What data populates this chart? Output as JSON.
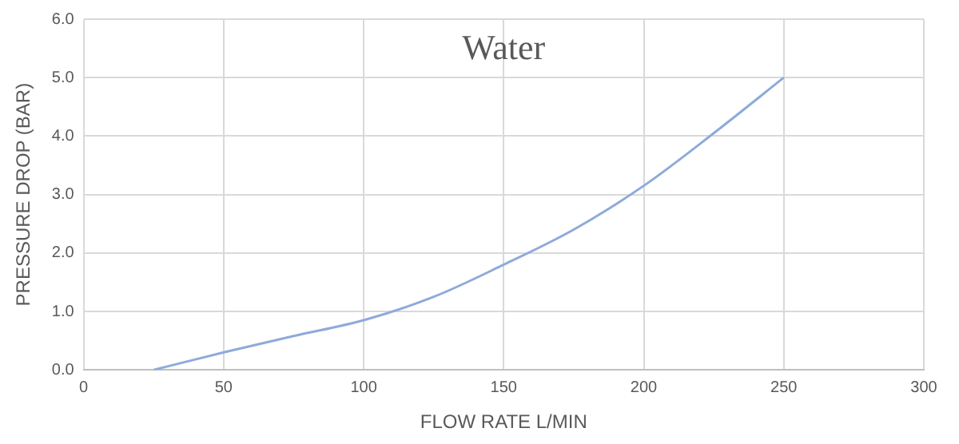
{
  "chart_data": {
    "type": "line",
    "title": "Water",
    "xlabel": "FLOW RATE L/MIN",
    "ylabel": "PRESSURE DROP (BAR)",
    "x": [
      25,
      50,
      75,
      100,
      125,
      150,
      175,
      200,
      225,
      250
    ],
    "series": [
      {
        "color": "#8eaadb",
        "values": [
          0,
          0.3,
          0.58,
          0.85,
          1.25,
          1.8,
          2.4,
          3.15,
          4.05,
          5.0
        ]
      }
    ],
    "xlim": [
      0,
      300
    ],
    "xticks": [
      0,
      50,
      100,
      150,
      200,
      250,
      300
    ],
    "ylim": [
      0,
      6
    ],
    "yticks": [
      {
        "value": 0,
        "label": "0.0"
      },
      {
        "value": 1,
        "label": "1.0"
      },
      {
        "value": 2,
        "label": "2.0"
      },
      {
        "value": 3,
        "label": "3.0"
      },
      {
        "value": 4,
        "label": "4.0"
      },
      {
        "value": 5,
        "label": "5.0"
      },
      {
        "value": 6,
        "label": "6.0"
      }
    ],
    "grid": true,
    "legend": false,
    "marker": "none",
    "line_style": "solid"
  }
}
